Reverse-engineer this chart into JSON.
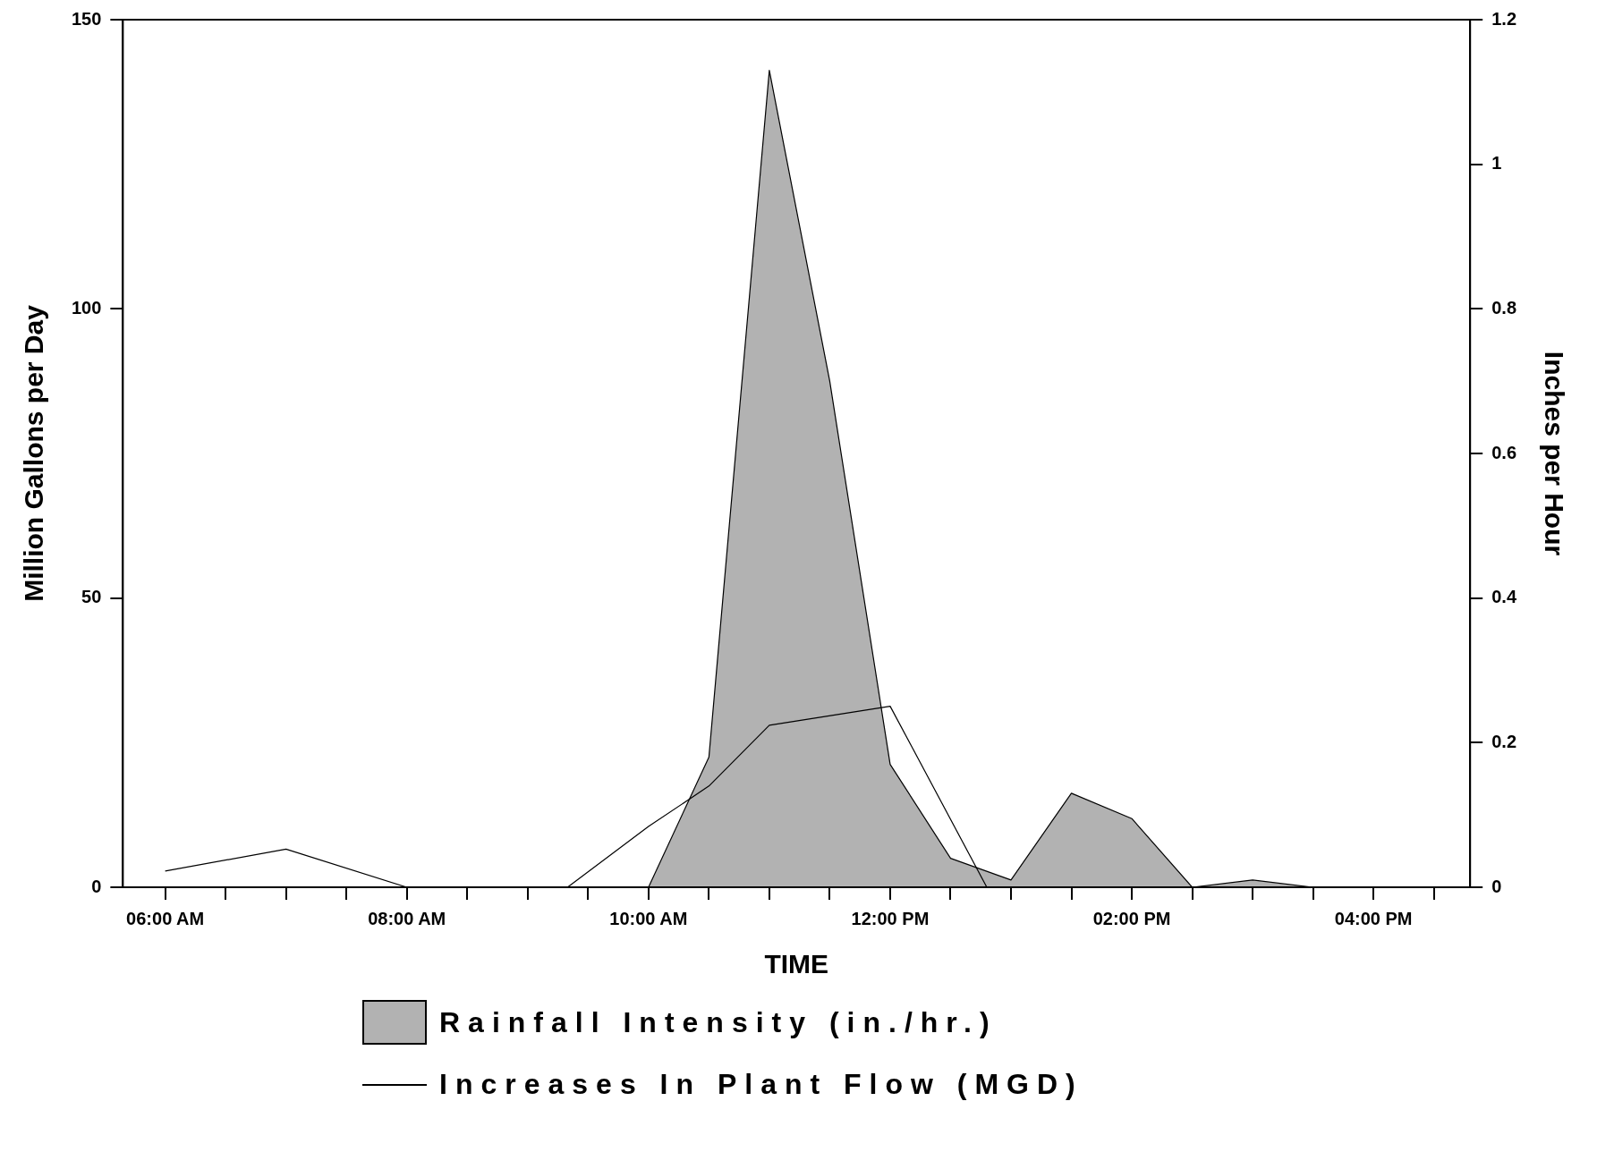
{
  "chart_data": {
    "type": "area",
    "xlabel": "TIME",
    "ylabel": "Million Gallons per Day",
    "y2label": "Inches per Hour",
    "legend": "bottom",
    "xlim": [
      5.65,
      16.8
    ],
    "xticks": [
      {
        "value": 6,
        "label": "06:00 AM"
      },
      {
        "value": 6.5,
        "label": null
      },
      {
        "value": 7,
        "label": null
      },
      {
        "value": 7.5,
        "label": null
      },
      {
        "value": 8,
        "label": "08:00 AM"
      },
      {
        "value": 8.5,
        "label": null
      },
      {
        "value": 9,
        "label": null
      },
      {
        "value": 9.5,
        "label": null
      },
      {
        "value": 10,
        "label": "10:00 AM"
      },
      {
        "value": 10.5,
        "label": null
      },
      {
        "value": 11,
        "label": null
      },
      {
        "value": 11.5,
        "label": null
      },
      {
        "value": 12,
        "label": "12:00 PM"
      },
      {
        "value": 12.5,
        "label": null
      },
      {
        "value": 13,
        "label": null
      },
      {
        "value": 13.5,
        "label": null
      },
      {
        "value": 14,
        "label": "02:00 PM"
      },
      {
        "value": 14.5,
        "label": null
      },
      {
        "value": 15,
        "label": null
      },
      {
        "value": 15.5,
        "label": null
      },
      {
        "value": 16,
        "label": "04:00 PM"
      },
      {
        "value": 16.5,
        "label": null
      }
    ],
    "ylim": [
      0,
      150
    ],
    "yticks": [
      0,
      50,
      100,
      150
    ],
    "y2lim": [
      0,
      1.2
    ],
    "y2ticks": [
      0,
      0.2,
      0.4,
      0.6,
      0.8,
      1,
      1.2
    ],
    "series": [
      {
        "name": "Rainfall Intensity (in./hr.)",
        "axis": "y2",
        "color": "#000000",
        "x": [
          10,
          10.5,
          11,
          11.5,
          12,
          12.5,
          13,
          13.5,
          14,
          14.5,
          15,
          15.5
        ],
        "values": [
          0,
          0.18,
          1.13,
          0.7,
          0.17,
          0.04,
          0.01,
          0.13,
          0.095,
          0,
          0.01,
          0
        ]
      },
      {
        "name": "Increases In Plant Flow (MGD)",
        "type": "line",
        "color": "#000000",
        "x": [
          6,
          7,
          8,
          9.33,
          10,
          10.5,
          11,
          12,
          12.8
        ],
        "values": [
          2.8,
          6.6,
          0,
          0,
          10.5,
          17.5,
          28,
          31.3,
          0
        ]
      }
    ]
  }
}
